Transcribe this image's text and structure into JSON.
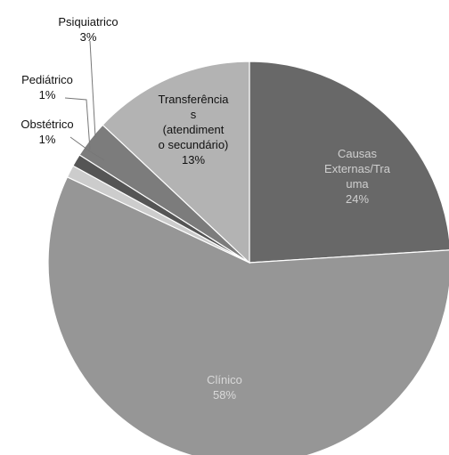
{
  "chart_data": {
    "type": "pie",
    "title": "",
    "slices": [
      {
        "label_lines": [
          "Causas",
          "Externas/Tra",
          "uma"
        ],
        "pct_text": "24%",
        "value": 24,
        "color": "#686868",
        "text_color": "#cfcfcf"
      },
      {
        "label_lines": [
          "Clínico"
        ],
        "pct_text": "58%",
        "value": 58,
        "color": "#969696",
        "text_color": "#d9d9d9"
      },
      {
        "label_lines": [
          "Obstétrico"
        ],
        "pct_text": "1%",
        "value": 1,
        "color": "#cccccc",
        "text_color": "#111111"
      },
      {
        "label_lines": [
          "Pediátrico"
        ],
        "pct_text": "1%",
        "value": 1,
        "color": "#555555",
        "text_color": "#111111"
      },
      {
        "label_lines": [
          "Psiquiatrico"
        ],
        "pct_text": "3%",
        "value": 3,
        "color": "#7c7c7c",
        "text_color": "#111111"
      },
      {
        "label_lines": [
          "Transferência",
          "s",
          "(atendiment",
          "o secundário)"
        ],
        "pct_text": "13%",
        "value": 13,
        "color": "#b3b3b3",
        "text_color": "#111111"
      }
    ]
  }
}
